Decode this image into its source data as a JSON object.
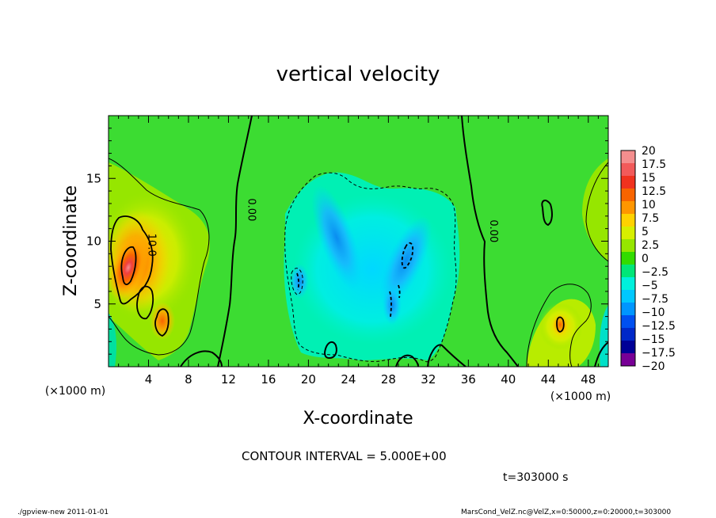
{
  "chart_data": {
    "type": "heatmap",
    "title": "vertical velocity",
    "xlabel": "X-coordinate",
    "ylabel": "Z-coordinate",
    "x_unit_label": "(×1000 m)",
    "x_ticks": [
      4,
      8,
      12,
      16,
      20,
      24,
      28,
      32,
      36,
      40,
      44,
      48
    ],
    "y_ticks": [
      5,
      10,
      15
    ],
    "xlim": [
      0,
      50
    ],
    "ylim": [
      0,
      20
    ],
    "colorbar": {
      "labels": [
        "20",
        "17.5",
        "15",
        "12.5",
        "10",
        "7.5",
        "5",
        "2.5",
        "0",
        "−2.5",
        "−5",
        "−7.5",
        "−10",
        "−12.5",
        "−15",
        "−17.5",
        "−20"
      ],
      "colors": [
        "#f48e8e",
        "#f25a5a",
        "#f0321e",
        "#f86400",
        "#ff9600",
        "#ffd200",
        "#d7ef00",
        "#96e600",
        "#32dc00",
        "#00e678",
        "#00f0dc",
        "#00c8ff",
        "#0096ff",
        "#0050f0",
        "#0028c8",
        "#000096",
        "#780096"
      ]
    },
    "contour_labels": [
      {
        "text": "10.0",
        "x": 4.0,
        "y": 9.7
      },
      {
        "text": "0.00",
        "x": 14.0,
        "y": 12.5
      },
      {
        "text": "0.00",
        "x": 38.2,
        "y": 10.8
      }
    ],
    "features": [
      {
        "type": "max",
        "x": 1.8,
        "y": 8.0,
        "value": 17.5
      },
      {
        "type": "max",
        "x": 5.3,
        "y": 3.5,
        "value": 12.5
      },
      {
        "type": "max",
        "x": 45.0,
        "y": 3.5,
        "value": 10
      },
      {
        "type": "min",
        "x": 19.0,
        "y": 6.5,
        "value": -10
      },
      {
        "type": "min",
        "x": 29.8,
        "y": 9.0,
        "value": -10
      },
      {
        "type": "min",
        "x": 22.5,
        "y": 11.0,
        "value": -7.5
      }
    ]
  },
  "contour_interval": "CONTOUR INTERVAL = 5.000E+00",
  "time_label": "t=303000 s",
  "footer_left": "./gpview-new  2011-01-01",
  "footer_right": "MarsCond_VelZ.nc@VelZ,x=0:50000,z=0:20000,t=303000"
}
